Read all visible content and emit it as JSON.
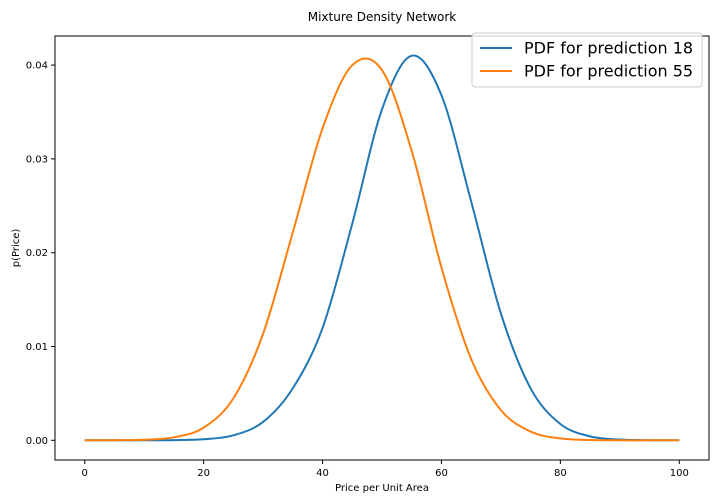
{
  "chart_data": {
    "type": "line",
    "title": "Mixture Density Network",
    "xlabel": "Price per Unit Area",
    "ylabel": "p(Price)",
    "xlim": [
      -5,
      105
    ],
    "ylim": [
      -0.0021,
      0.0431
    ],
    "x_ticks": [
      0,
      20,
      40,
      60,
      80,
      100
    ],
    "x_tick_labels": [
      "0",
      "20",
      "40",
      "60",
      "80",
      "100"
    ],
    "y_ticks": [
      0.0,
      0.01,
      0.02,
      0.03,
      0.04
    ],
    "y_tick_labels": [
      "0.00",
      "0.01",
      "0.02",
      "0.03",
      "0.04"
    ],
    "grid": false,
    "legend_position": "top-right",
    "x": [
      0,
      5,
      10,
      15,
      20,
      25,
      30,
      35,
      40,
      45,
      50,
      55,
      60,
      65,
      70,
      75,
      80,
      85,
      90,
      95,
      100
    ],
    "series": [
      {
        "name": "PDF for prediction 18",
        "color": "#1f77b4",
        "values": [
          0.0,
          0.0,
          0.0,
          2e-05,
          0.00011,
          0.00053,
          0.00196,
          0.00555,
          0.01198,
          0.0231,
          0.03528,
          0.041,
          0.03678,
          0.02546,
          0.01351,
          0.00553,
          0.00174,
          0.00042,
          8e-05,
          1e-05,
          0.0
        ]
      },
      {
        "name": "PDF for prediction 55",
        "color": "#ff7f0e",
        "values": [
          0.0,
          1e-05,
          6e-05,
          0.00032,
          0.00135,
          0.00447,
          0.01136,
          0.02218,
          0.03325,
          0.03999,
          0.03946,
          0.03084,
          0.01842,
          0.00866,
          0.00322,
          0.00093,
          0.0002,
          3e-05,
          0.0,
          0.0,
          0.0
        ]
      }
    ]
  }
}
